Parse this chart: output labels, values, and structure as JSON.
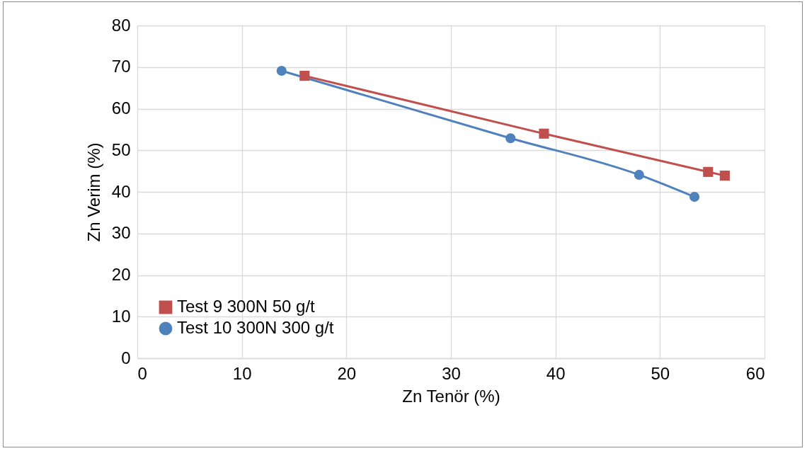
{
  "chart_data": {
    "type": "line",
    "xlabel": "Zn Tenör (%)",
    "ylabel": "Zn Verim (%)",
    "xlim": [
      0,
      60
    ],
    "xticks": [
      0,
      10,
      20,
      30,
      40,
      50,
      60
    ],
    "ylim": [
      0,
      80
    ],
    "yticks": [
      0,
      10,
      20,
      30,
      40,
      50,
      60,
      70,
      80
    ],
    "grid": true,
    "legend": "bottom left",
    "line_style": "solid",
    "series": [
      {
        "name": "Test 9 300N 50 g/t",
        "color": "#c0504d",
        "marker": "square",
        "x": [
          16,
          38.9,
          54.6,
          56.2
        ],
        "values": [
          67.9,
          54,
          44.8,
          43.9
        ]
      },
      {
        "name": "Test 10 300N 300 g/t",
        "color": "#4f81bd",
        "marker": "circle",
        "x": [
          13.8,
          35.7,
          48,
          53.3
        ],
        "values": [
          69.1,
          52.9,
          44.1,
          38.8
        ]
      }
    ]
  }
}
